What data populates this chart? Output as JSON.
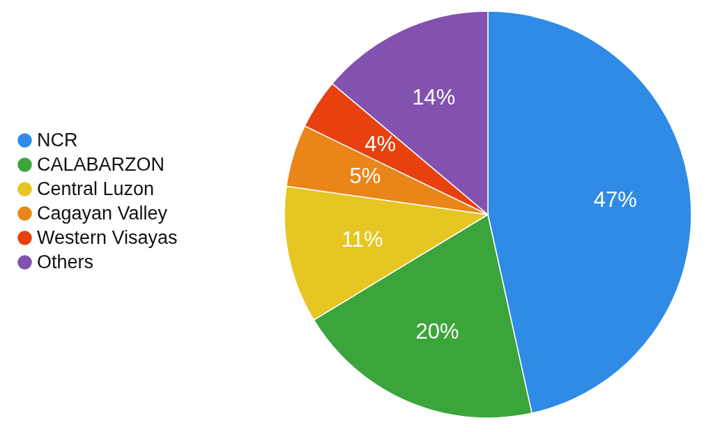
{
  "chart_data": {
    "type": "pie",
    "categories": [
      "NCR",
      "CALABARZON",
      "Central Luzon",
      "Cagayan Valley",
      "Western Visayas",
      "Others"
    ],
    "values": [
      47,
      20,
      11,
      5,
      4,
      14
    ],
    "colors": [
      "#2f8be6",
      "#3ba53b",
      "#e6c622",
      "#ea8519",
      "#e8400f",
      "#8352b0"
    ],
    "value_labels": [
      "47%",
      "20%",
      "11%",
      "5%",
      "4%",
      "14%"
    ],
    "legend": "left"
  }
}
